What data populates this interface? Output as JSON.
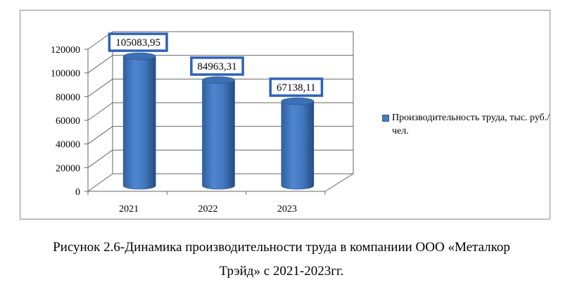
{
  "chart_data": {
    "type": "bar",
    "categories": [
      "2021",
      "2022",
      "2023"
    ],
    "series": [
      {
        "name": "Производительность труда, тыс. руб./чел.",
        "values": [
          105083.95,
          84963.31,
          67138.11
        ],
        "color": "#3f74be"
      }
    ],
    "data_labels": [
      "105083,95",
      "84963,31",
      "67138,11"
    ],
    "yticks": [
      "0",
      "20000",
      "40000",
      "60000",
      "80000",
      "100000",
      "120000"
    ],
    "ylim": [
      0,
      120000
    ],
    "legend_position": "right",
    "grid": true,
    "style": "3d-cylinder"
  },
  "caption": {
    "line1": "Рисунок 2.6-Динамика производительности труда в компаниии ООО «Металкор",
    "line2": "Трэйд» с 2021-2023гг."
  }
}
